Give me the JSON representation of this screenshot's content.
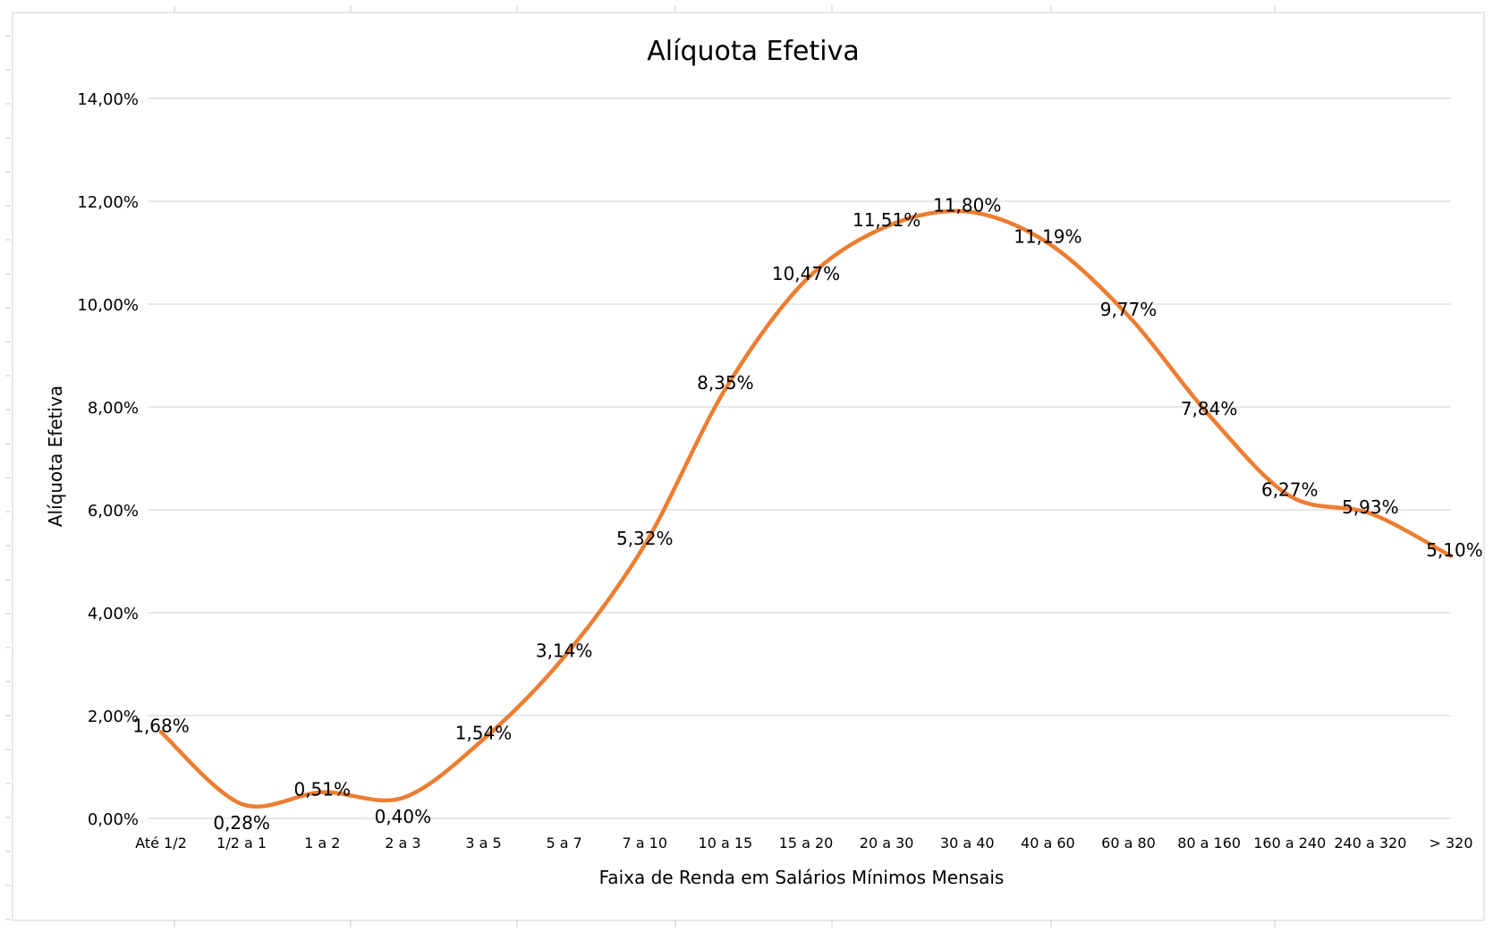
{
  "chart_data": {
    "type": "line",
    "title": "Alíquota Efetiva",
    "xlabel": "Faixa de Renda em Salários Mínimos Mensais",
    "ylabel": "Alíquota Efetiva",
    "categories": [
      "Até 1/2",
      "1/2 a 1",
      "1 a 2",
      "2 a 3",
      "3 a 5",
      "5 a 7",
      "7 a 10",
      "10 a 15",
      "15 a 20",
      "20 a 30",
      "30 a 40",
      "40 a 60",
      "60 a 80",
      "80 a 160",
      "160 a 240",
      "240 a 320",
      "> 320"
    ],
    "series": [
      {
        "values": [
          1.68,
          0.28,
          0.51,
          0.4,
          1.54,
          3.14,
          5.32,
          8.35,
          10.47,
          11.51,
          11.8,
          11.19,
          9.77,
          7.84,
          6.27,
          5.93,
          5.1
        ],
        "data_labels": [
          "1,68%",
          "0,28%",
          "0,51%",
          "0,40%",
          "1,54%",
          "3,14%",
          "5,32%",
          "8,35%",
          "10,47%",
          "11,51%",
          "11,80%",
          "11,19%",
          "9,77%",
          "7,84%",
          "6,27%",
          "5,93%",
          "5,10%"
        ],
        "color": "#ED7D31"
      }
    ],
    "ylim": [
      0,
      14
    ],
    "yticks": [
      0,
      2,
      4,
      6,
      8,
      10,
      12,
      14
    ],
    "ytick_labels": [
      "0,00%",
      "2,00%",
      "4,00%",
      "6,00%",
      "8,00%",
      "10,00%",
      "12,00%",
      "14,00%"
    ],
    "grid": true,
    "legend": "none",
    "gridline_color": "#D9D9D9"
  }
}
